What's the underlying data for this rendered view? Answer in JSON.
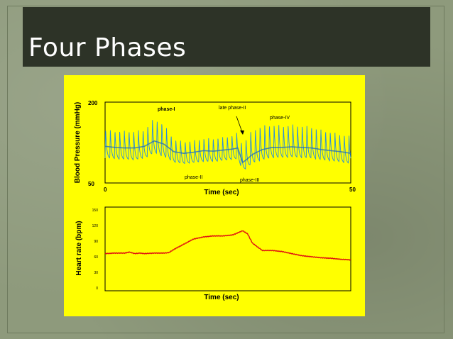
{
  "slide": {
    "title": "Four Phases"
  },
  "colors": {
    "background": "#8e9a7c",
    "title_bar": "#2d3327",
    "panel": "#ffff00",
    "bp_trace": "#2a8fd8",
    "hr_trace": "#e01010"
  },
  "chart_data": [
    {
      "type": "line",
      "title": "",
      "xlabel": "Time (sec)",
      "ylabel": "Blood Pressure (mmHg)",
      "xlim": [
        0,
        50
      ],
      "ylim": [
        50,
        200
      ],
      "xticks": [
        "0",
        "50"
      ],
      "yticks": [
        "200",
        "50"
      ],
      "annotations": [
        "phase-I",
        "late phase-II",
        "phase-IV",
        "phase-II",
        "phase-III"
      ],
      "series": [
        {
          "x": [
            0,
            2,
            4,
            6,
            8,
            10,
            12,
            14,
            16,
            18,
            20,
            22,
            24,
            26,
            27,
            28,
            29,
            30,
            32,
            34,
            36,
            38,
            40,
            42,
            44,
            46,
            48,
            50
          ],
          "mean": [
            118,
            116,
            115,
            115,
            118,
            128,
            122,
            108,
            105,
            107,
            110,
            109,
            111,
            113,
            115,
            88,
            95,
            103,
            112,
            116,
            116,
            117,
            116,
            115,
            112,
            110,
            108,
            105
          ],
          "peak": [
            150,
            148,
            148,
            148,
            150,
            172,
            160,
            132,
            128,
            130,
            134,
            134,
            136,
            140,
            145,
            122,
            138,
            150,
            158,
            160,
            158,
            160,
            158,
            156,
            150,
            146,
            142,
            138
          ],
          "trough": [
            96,
            94,
            93,
            92,
            95,
            105,
            98,
            88,
            85,
            87,
            89,
            89,
            91,
            93,
            94,
            72,
            78,
            86,
            92,
            96,
            96,
            97,
            96,
            95,
            92,
            90,
            88,
            85
          ]
        }
      ]
    },
    {
      "type": "line",
      "title": "",
      "xlabel": "Time (sec)",
      "ylabel": "Heart rate (bpm)",
      "ylim": [
        0,
        150
      ],
      "yticks": [
        "150",
        "120",
        "90",
        "60",
        "30",
        "0"
      ],
      "series": [
        {
          "x": [
            0,
            2,
            4,
            5,
            6,
            7,
            8,
            10,
            12,
            13,
            14,
            16,
            18,
            20,
            22,
            24,
            26,
            27,
            28,
            29,
            30,
            32,
            34,
            36,
            38,
            40,
            42,
            44,
            46,
            48,
            50
          ],
          "values": [
            66,
            67,
            67,
            69,
            66,
            67,
            66,
            67,
            67,
            68,
            74,
            84,
            94,
            98,
            100,
            100,
            102,
            106,
            110,
            104,
            86,
            72,
            72,
            70,
            66,
            62,
            60,
            58,
            57,
            55,
            54
          ]
        }
      ]
    }
  ]
}
